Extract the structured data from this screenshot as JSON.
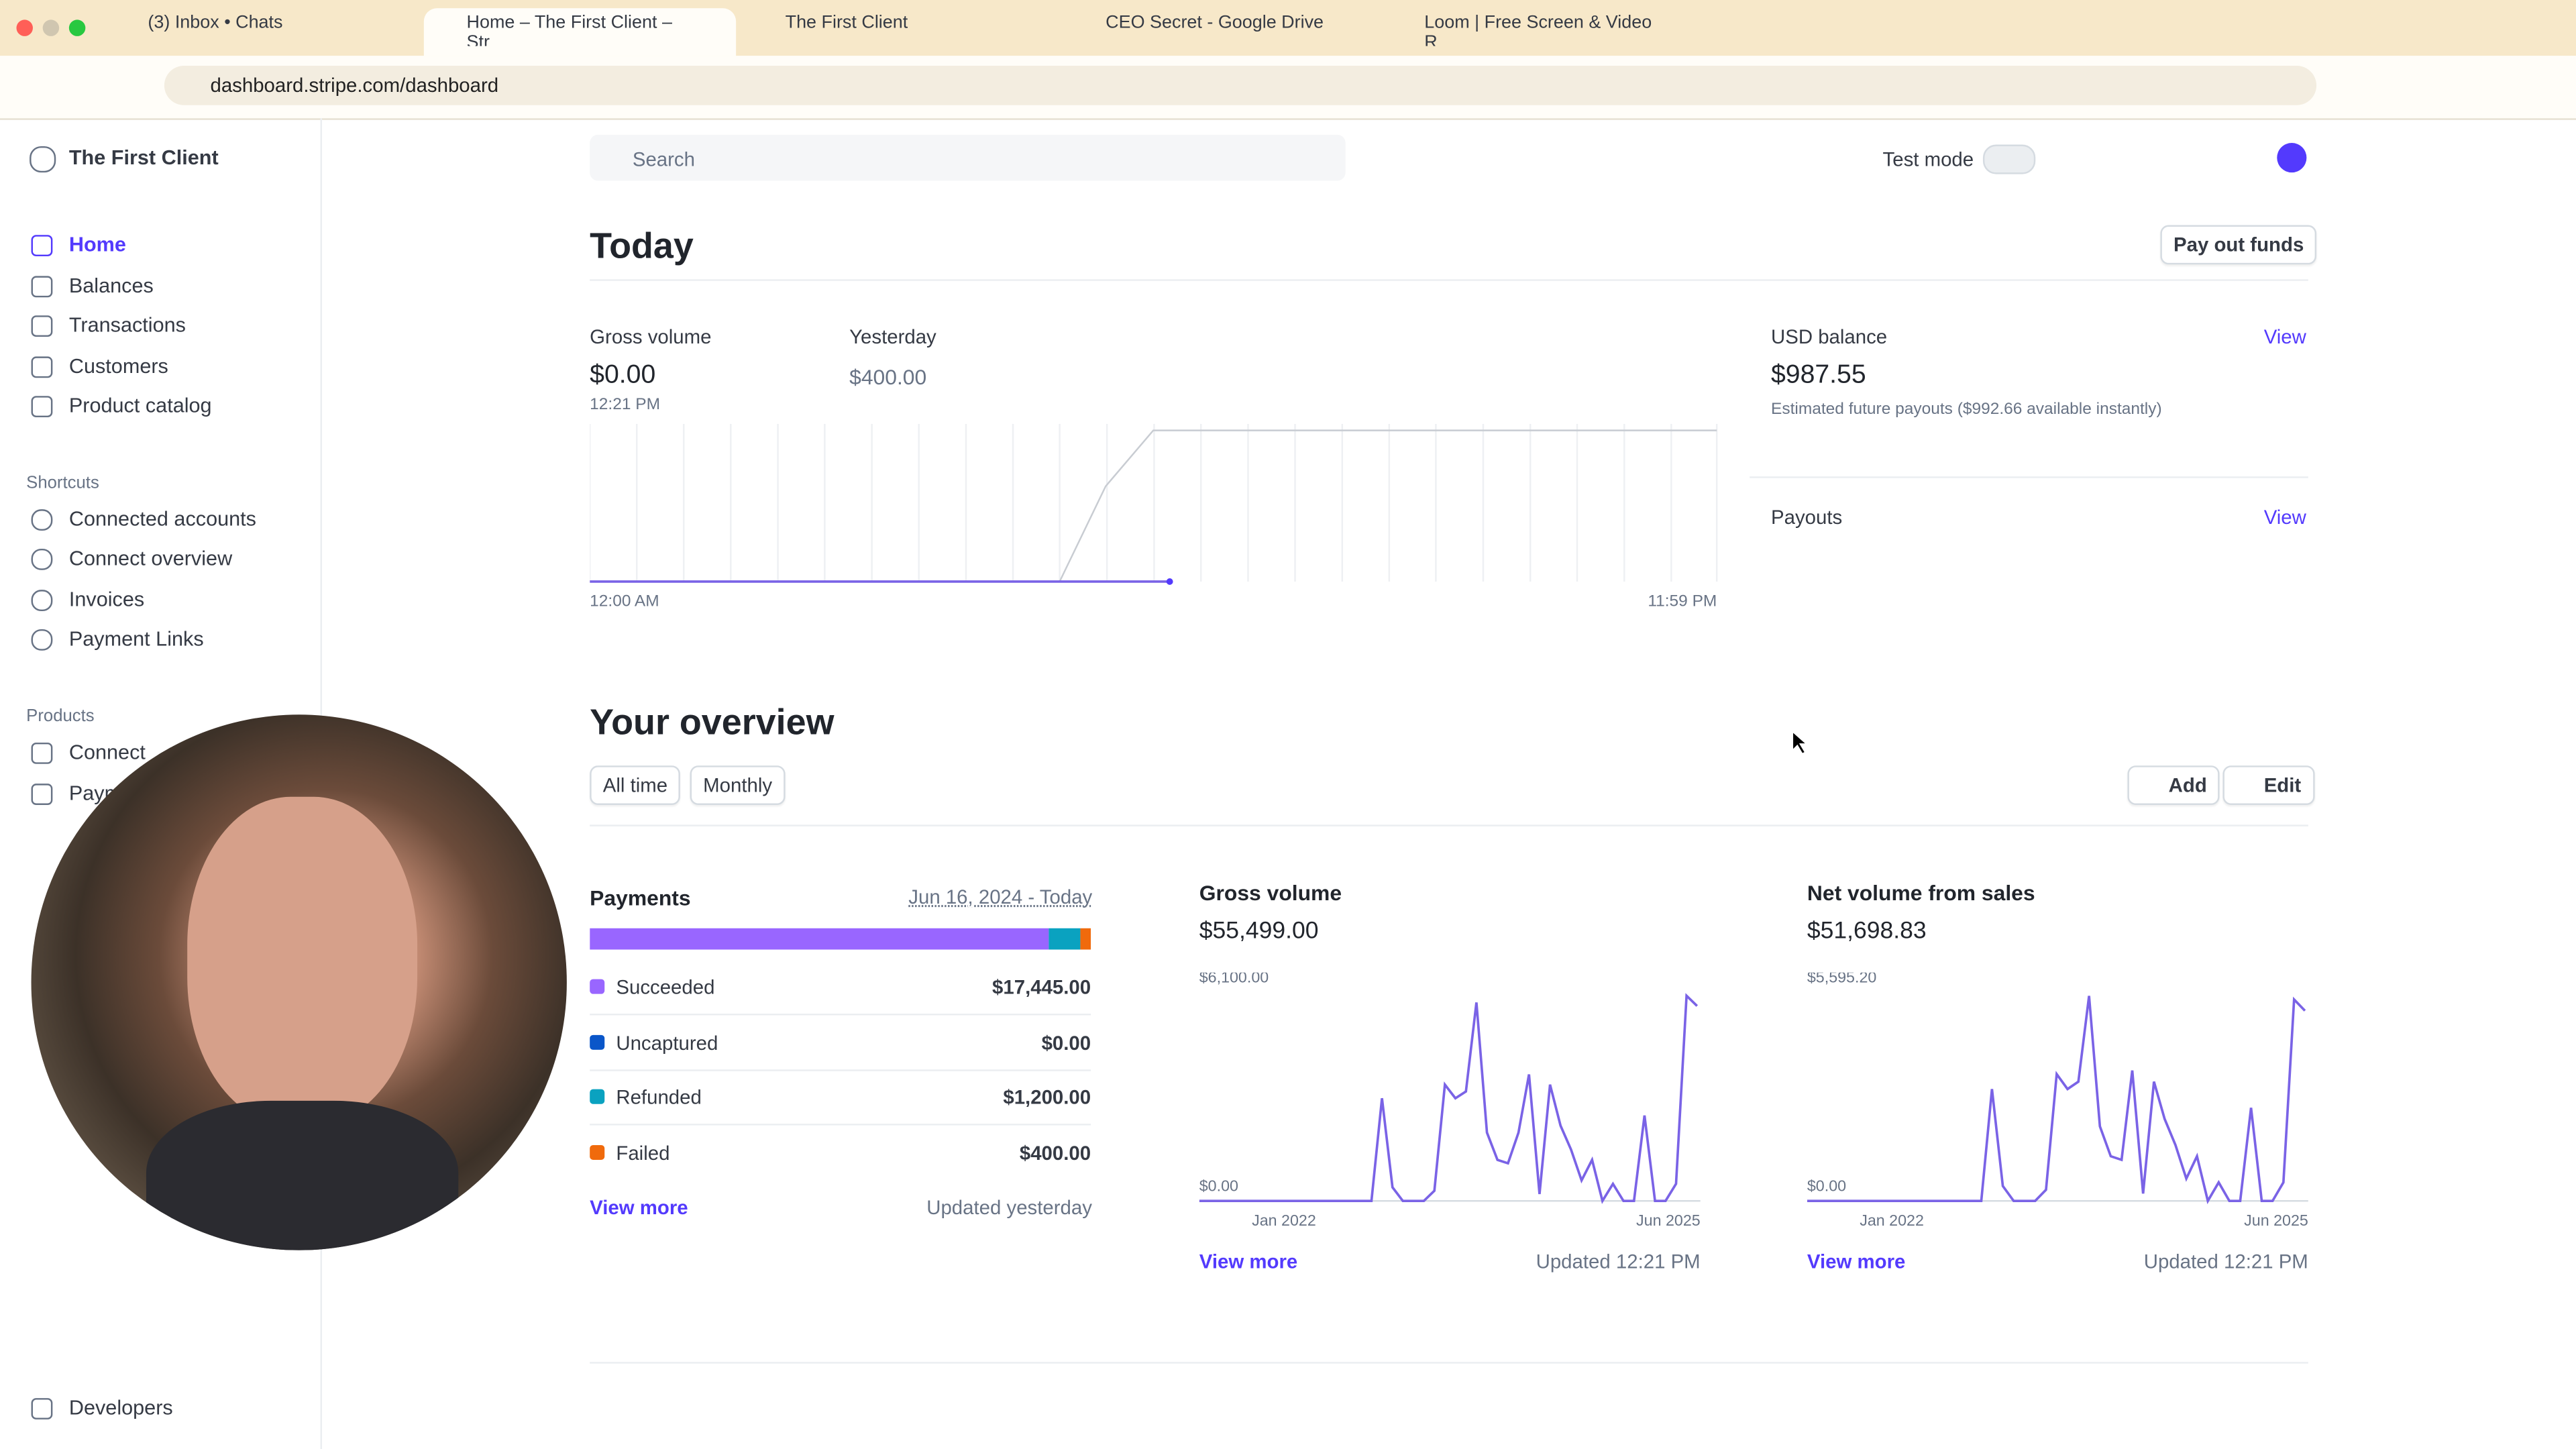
{
  "browser": {
    "tabs": [
      "(3) Inbox • Chats",
      "Home – The First Client – Str",
      "The First Client",
      "CEO Secret - Google Drive",
      "Loom | Free Screen & Video R"
    ],
    "url": "dashboard.stripe.com/dashboard"
  },
  "sidebar": {
    "account": "The First Client",
    "nav": [
      "Home",
      "Balances",
      "Transactions",
      "Customers",
      "Product catalog"
    ],
    "shortcuts_heading": "Shortcuts",
    "shortcuts": [
      "Connected accounts",
      "Connect overview",
      "Invoices",
      "Payment Links"
    ],
    "products_heading": "Products",
    "products": [
      "Connect",
      "Payments"
    ],
    "developers": "Developers"
  },
  "topbar": {
    "search": "Search",
    "test_mode": "Test mode"
  },
  "today": {
    "title": "Today",
    "pay_out": "Pay out funds",
    "gross_volume_label": "Gross volume",
    "gross_volume": "$0.00",
    "time": "12:21 PM",
    "compare_label": "Yesterday",
    "compare_value": "$400.00",
    "x_start": "12:00 AM",
    "x_end": "11:59 PM",
    "balance_label": "USD balance",
    "balance": "$987.55",
    "balance_note": "Estimated future payouts ($992.66 available instantly)",
    "balance_view": "View",
    "payouts": "Payouts",
    "payouts_view": "View"
  },
  "overview": {
    "title": "Your overview",
    "range": "All time",
    "interval": "Monthly",
    "add": "Add",
    "edit": "Edit"
  },
  "payments": {
    "title": "Payments",
    "dates": "Jun 16, 2024 - Today",
    "categories": [
      "Succeeded",
      "Uncaptured",
      "Refunded",
      "Failed"
    ],
    "values": [
      17445,
      0,
      1200,
      400
    ],
    "value_labels": [
      "$17,445.00",
      "$0.00",
      "$1,200.00",
      "$400.00"
    ],
    "colors": [
      "#9966ff",
      "#0a56c9",
      "#0aa2c0",
      "#f06a0c"
    ],
    "view_more": "View more",
    "updated": "Updated yesterday"
  },
  "chart_data": [
    {
      "type": "line",
      "title": "Gross volume",
      "subtitle": "$55,499.00",
      "color": "#7a63e6",
      "values": [
        0,
        0,
        0,
        0,
        0,
        0,
        0,
        0,
        3000,
        400,
        0,
        0,
        0,
        300,
        3400,
        3000,
        3200,
        5800,
        2000,
        1200,
        1100,
        2000,
        3700,
        200,
        3400,
        2200,
        1500,
        600,
        1200,
        0,
        500,
        0,
        0,
        2500,
        0,
        0,
        500,
        6000,
        5700
      ],
      "ylim": [
        0,
        6100
      ],
      "yticks": [
        {
          "value": 0,
          "label": "$0.00"
        },
        {
          "value": 6100,
          "label": "$6,100.00"
        }
      ],
      "xtick_labels": [
        "Jan 2022",
        "Jun 2025"
      ],
      "view_more": "View more",
      "updated": "Updated 12:21 PM"
    },
    {
      "type": "line",
      "title": "Net volume from sales",
      "subtitle": "$51,698.83",
      "color": "#7a63e6",
      "values": [
        0,
        0,
        0,
        0,
        0,
        0,
        0,
        0,
        3000,
        400,
        0,
        0,
        0,
        300,
        3400,
        3000,
        3200,
        5500,
        2000,
        1200,
        1100,
        3500,
        200,
        3200,
        2200,
        1500,
        600,
        1200,
        0,
        500,
        0,
        0,
        2500,
        0,
        0,
        500,
        5400,
        5100
      ],
      "ylim": [
        0,
        5595.2
      ],
      "yticks": [
        {
          "value": 0,
          "label": "$0.00"
        },
        {
          "value": 5595.2,
          "label": "$5,595.20"
        }
      ],
      "xtick_labels": [
        "Jan 2022",
        "Jun 2025"
      ],
      "view_more": "View more",
      "updated": "Updated 12:21 PM"
    }
  ]
}
